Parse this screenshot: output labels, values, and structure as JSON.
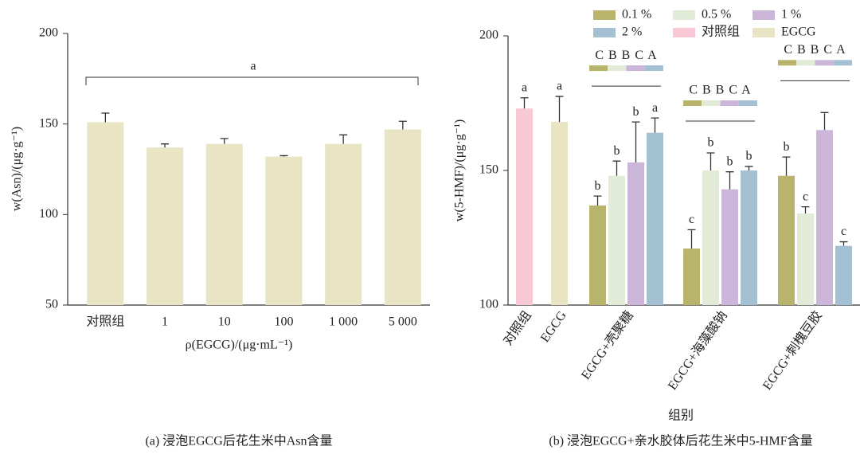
{
  "chart_data": [
    {
      "type": "bar",
      "caption": "(a) 浸泡EGCG后花生米中Asn含量",
      "y_label": "w(Asn)/(μg·g⁻¹)",
      "x_label": "ρ(EGCG)/(μg·mL⁻¹)",
      "annotation": "a",
      "categories": [
        "对照组",
        "1",
        "10",
        "100",
        "1 000",
        "5 000"
      ],
      "values": [
        151,
        137,
        139,
        132,
        139,
        147
      ],
      "errors": [
        5,
        2,
        3,
        0.5,
        5,
        4.5
      ],
      "color": "#e8e4c4",
      "ylim": [
        50,
        200
      ],
      "yticks": [
        50,
        100,
        150,
        200
      ]
    },
    {
      "type": "bar",
      "caption": "(b) 浸泡EGCG+亲水胶体后花生米中5-HMF含量",
      "y_label": "w(5-HMF)/(μg·g⁻¹)",
      "x_label": "组别",
      "categories": [
        "对照组",
        "EGCG",
        "EGCG+壳聚糖",
        "EGCG+海藻酸钠",
        "EGCG+刺槐豆胶"
      ],
      "group_labels": [
        null,
        null,
        "C B B C A",
        "C B B C A",
        "C B B C A"
      ],
      "series": [
        {
          "name": "0.1 %",
          "color": "#b9b46c",
          "values": [
            null,
            null,
            137,
            121,
            148
          ],
          "errors": [
            null,
            null,
            3.5,
            7,
            7
          ],
          "letters": [
            null,
            null,
            "b",
            "c",
            "b"
          ]
        },
        {
          "name": "0.5 %",
          "color": "#e2ebd8",
          "values": [
            null,
            null,
            148,
            150,
            134
          ],
          "errors": [
            null,
            null,
            5.5,
            6.5,
            2.5
          ],
          "letters": [
            null,
            null,
            "b",
            "b",
            "c"
          ]
        },
        {
          "name": "1 %",
          "color": "#cbb6da",
          "values": [
            null,
            null,
            153,
            143,
            165
          ],
          "errors": [
            null,
            null,
            15,
            6.5,
            6.5
          ],
          "letters": [
            null,
            null,
            "b",
            "b",
            null
          ]
        },
        {
          "name": "2 %",
          "color": "#a3c1d3",
          "values": [
            null,
            null,
            164,
            150,
            122
          ],
          "errors": [
            null,
            null,
            5.5,
            1.5,
            1.5
          ],
          "letters": [
            null,
            null,
            "a",
            "b",
            "c"
          ]
        },
        {
          "name": "对照组",
          "color": "#f8c8d4",
          "values": [
            173,
            null,
            null,
            null,
            null
          ],
          "errors": [
            4,
            null,
            null,
            null,
            null
          ],
          "letters": [
            "a",
            null,
            null,
            null,
            null
          ]
        },
        {
          "name": "EGCG",
          "color": "#e8e4c4",
          "values": [
            null,
            168,
            null,
            null,
            null
          ],
          "errors": [
            null,
            9.5,
            null,
            null,
            null
          ],
          "letters": [
            null,
            "a",
            null,
            null,
            null
          ]
        }
      ],
      "ylim": [
        100,
        200
      ],
      "yticks": [
        100,
        150,
        200
      ]
    }
  ]
}
